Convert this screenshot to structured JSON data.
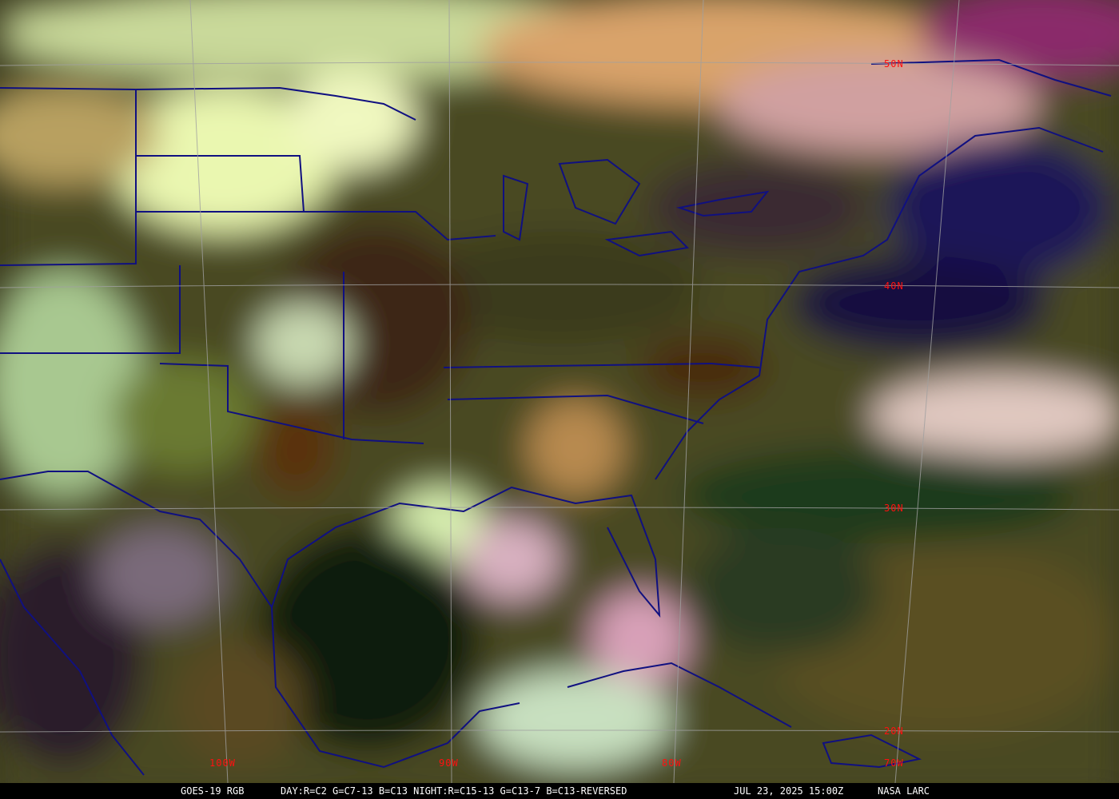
{
  "image": {
    "satellite": "GOES-19 RGB",
    "recipe": "DAY:R=C2 G=C7-13 B=C13 NIGHT:R=C15-13 G=C13-7 B=C13-REVERSED",
    "timestamp": "JUL 23, 2025 15:00Z",
    "credit": "NASA LARC"
  },
  "latitude_labels": [
    "50N",
    "40N",
    "30N",
    "20N"
  ],
  "longitude_labels": [
    "100W",
    "90W",
    "80W",
    "70W"
  ],
  "colors": {
    "grid": "#a0a0a0",
    "boundaries": "#101080",
    "labels": "#ff1010",
    "caption_bg": "#000000",
    "caption_text": "#ffffff"
  }
}
